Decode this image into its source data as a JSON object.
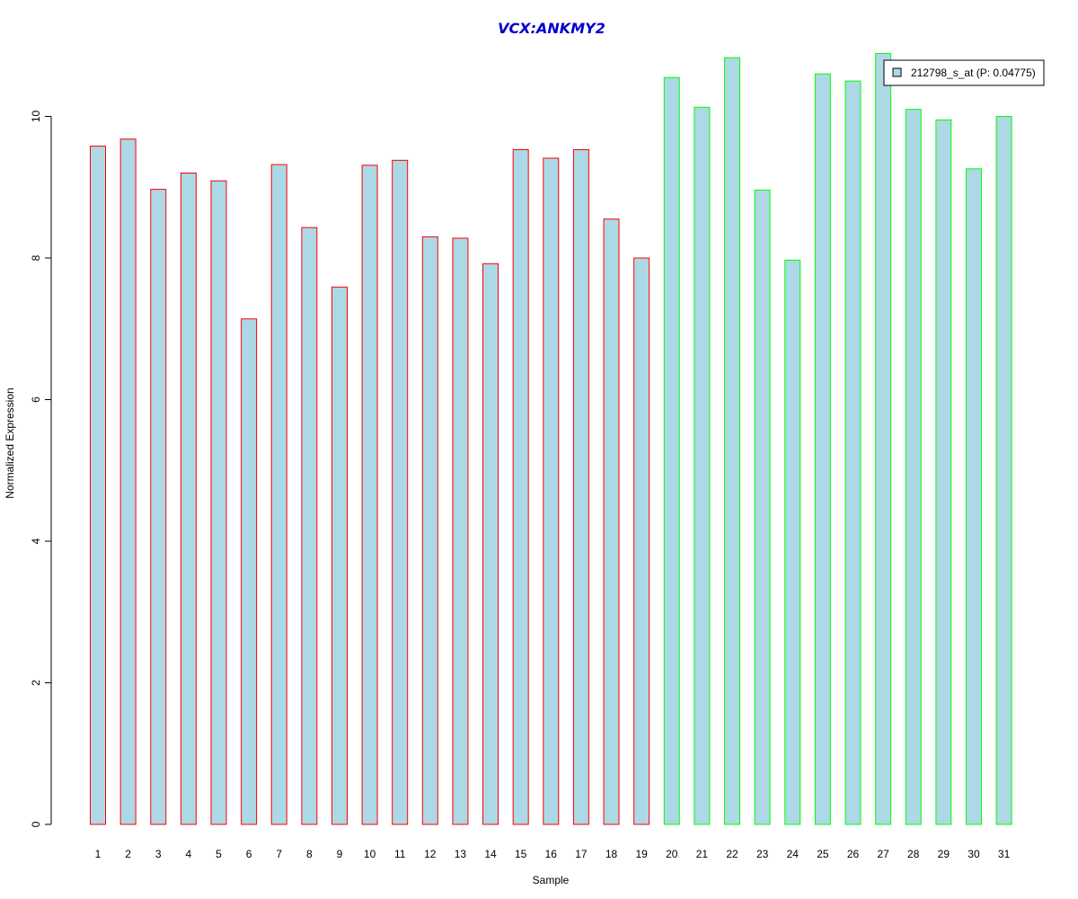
{
  "chart_data": {
    "type": "bar",
    "title": "VCX:ANKMY2",
    "xlabel": "Sample",
    "ylabel": "Normalized Expression",
    "ylim": [
      0,
      10.9
    ],
    "yticks": [
      0,
      2,
      4,
      6,
      8,
      10
    ],
    "categories": [
      "1",
      "2",
      "3",
      "4",
      "5",
      "6",
      "7",
      "8",
      "9",
      "10",
      "11",
      "12",
      "13",
      "14",
      "15",
      "16",
      "17",
      "18",
      "19",
      "20",
      "21",
      "22",
      "23",
      "24",
      "25",
      "26",
      "27",
      "28",
      "29",
      "30",
      "31"
    ],
    "series": [
      {
        "name": "212798_s_at (P: 0.04775)",
        "fill": "#add8e6",
        "values": [
          9.58,
          9.68,
          8.97,
          9.2,
          9.09,
          7.14,
          9.32,
          8.43,
          7.59,
          9.31,
          9.38,
          8.3,
          8.28,
          7.92,
          9.53,
          9.41,
          9.53,
          8.55,
          8.0,
          10.55,
          10.13,
          10.83,
          8.96,
          7.97,
          10.6,
          10.5,
          10.89,
          10.1,
          9.95,
          9.26,
          10.0
        ]
      }
    ],
    "group_colors": {
      "group1": "#ff0000",
      "group2": "#00ff00"
    },
    "group_assignment": [
      1,
      1,
      1,
      1,
      1,
      1,
      1,
      1,
      1,
      1,
      1,
      1,
      1,
      1,
      1,
      1,
      1,
      1,
      1,
      2,
      2,
      2,
      2,
      2,
      2,
      2,
      2,
      2,
      2,
      2,
      2
    ],
    "legend": {
      "label": "212798_s_at (P: 0.04775)",
      "position": "top-right"
    },
    "grid": false
  }
}
